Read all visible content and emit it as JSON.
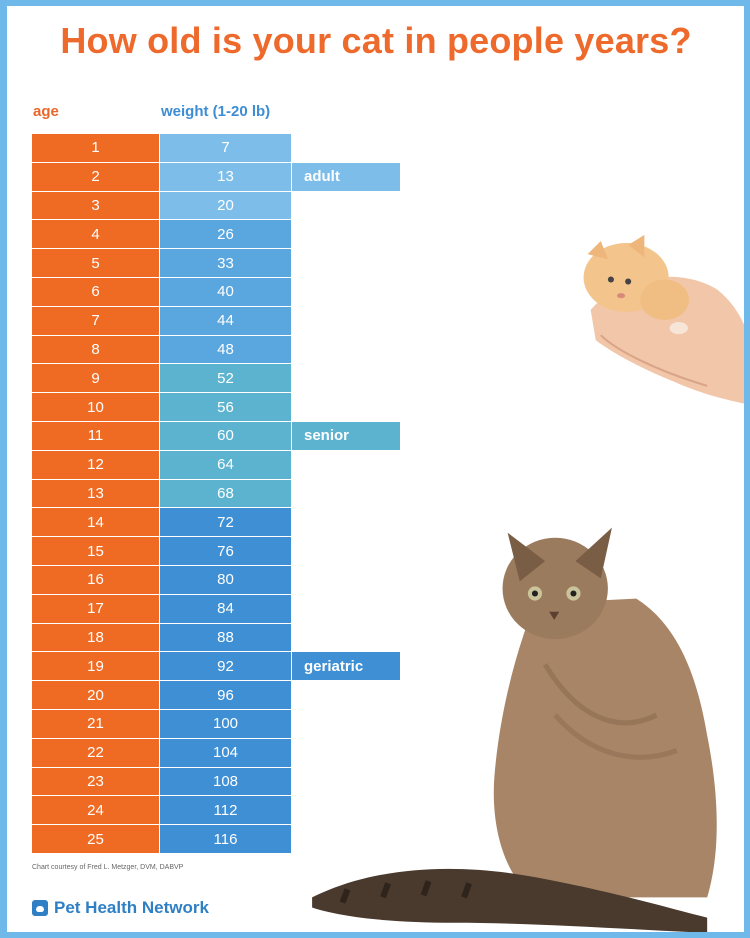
{
  "title": "How old is your cat in people years?",
  "headers": {
    "age": "age",
    "weight": "weight (1-20 lb)"
  },
  "chart_data": {
    "type": "table",
    "columns": [
      "age",
      "weight (1-20 lb)"
    ],
    "rows": [
      {
        "age": "1",
        "people_years": "7"
      },
      {
        "age": "2",
        "people_years": "13"
      },
      {
        "age": "3",
        "people_years": "20"
      },
      {
        "age": "4",
        "people_years": "26"
      },
      {
        "age": "5",
        "people_years": "33"
      },
      {
        "age": "6",
        "people_years": "40"
      },
      {
        "age": "7",
        "people_years": "44"
      },
      {
        "age": "8",
        "people_years": "48"
      },
      {
        "age": "9",
        "people_years": "52"
      },
      {
        "age": "10",
        "people_years": "56"
      },
      {
        "age": "11",
        "people_years": "60"
      },
      {
        "age": "12",
        "people_years": "64"
      },
      {
        "age": "13",
        "people_years": "68"
      },
      {
        "age": "14",
        "people_years": "72"
      },
      {
        "age": "15",
        "people_years": "76"
      },
      {
        "age": "16",
        "people_years": "80"
      },
      {
        "age": "17",
        "people_years": "84"
      },
      {
        "age": "18",
        "people_years": "88"
      },
      {
        "age": "19",
        "people_years": "92"
      },
      {
        "age": "20",
        "people_years": "96"
      },
      {
        "age": "21",
        "people_years": "100"
      },
      {
        "age": "22",
        "people_years": "104"
      },
      {
        "age": "23",
        "people_years": "108"
      },
      {
        "age": "24",
        "people_years": "112"
      },
      {
        "age": "25",
        "people_years": "116"
      }
    ],
    "stages": [
      {
        "label": "adult",
        "at_age": 2
      },
      {
        "label": "senior",
        "at_age": 11
      },
      {
        "label": "geriatric",
        "at_age": 19
      }
    ]
  },
  "colors": {
    "age": "#ef6b24",
    "band_young": "#7cbdea",
    "band_adult": "#5aa6df",
    "band_mature": "#5cb3cf",
    "band_senior": "#3f8fd4"
  },
  "credit": "Chart courtesy of Fred L. Metzger, DVM, DABVP",
  "brand": "Pet Health Network"
}
